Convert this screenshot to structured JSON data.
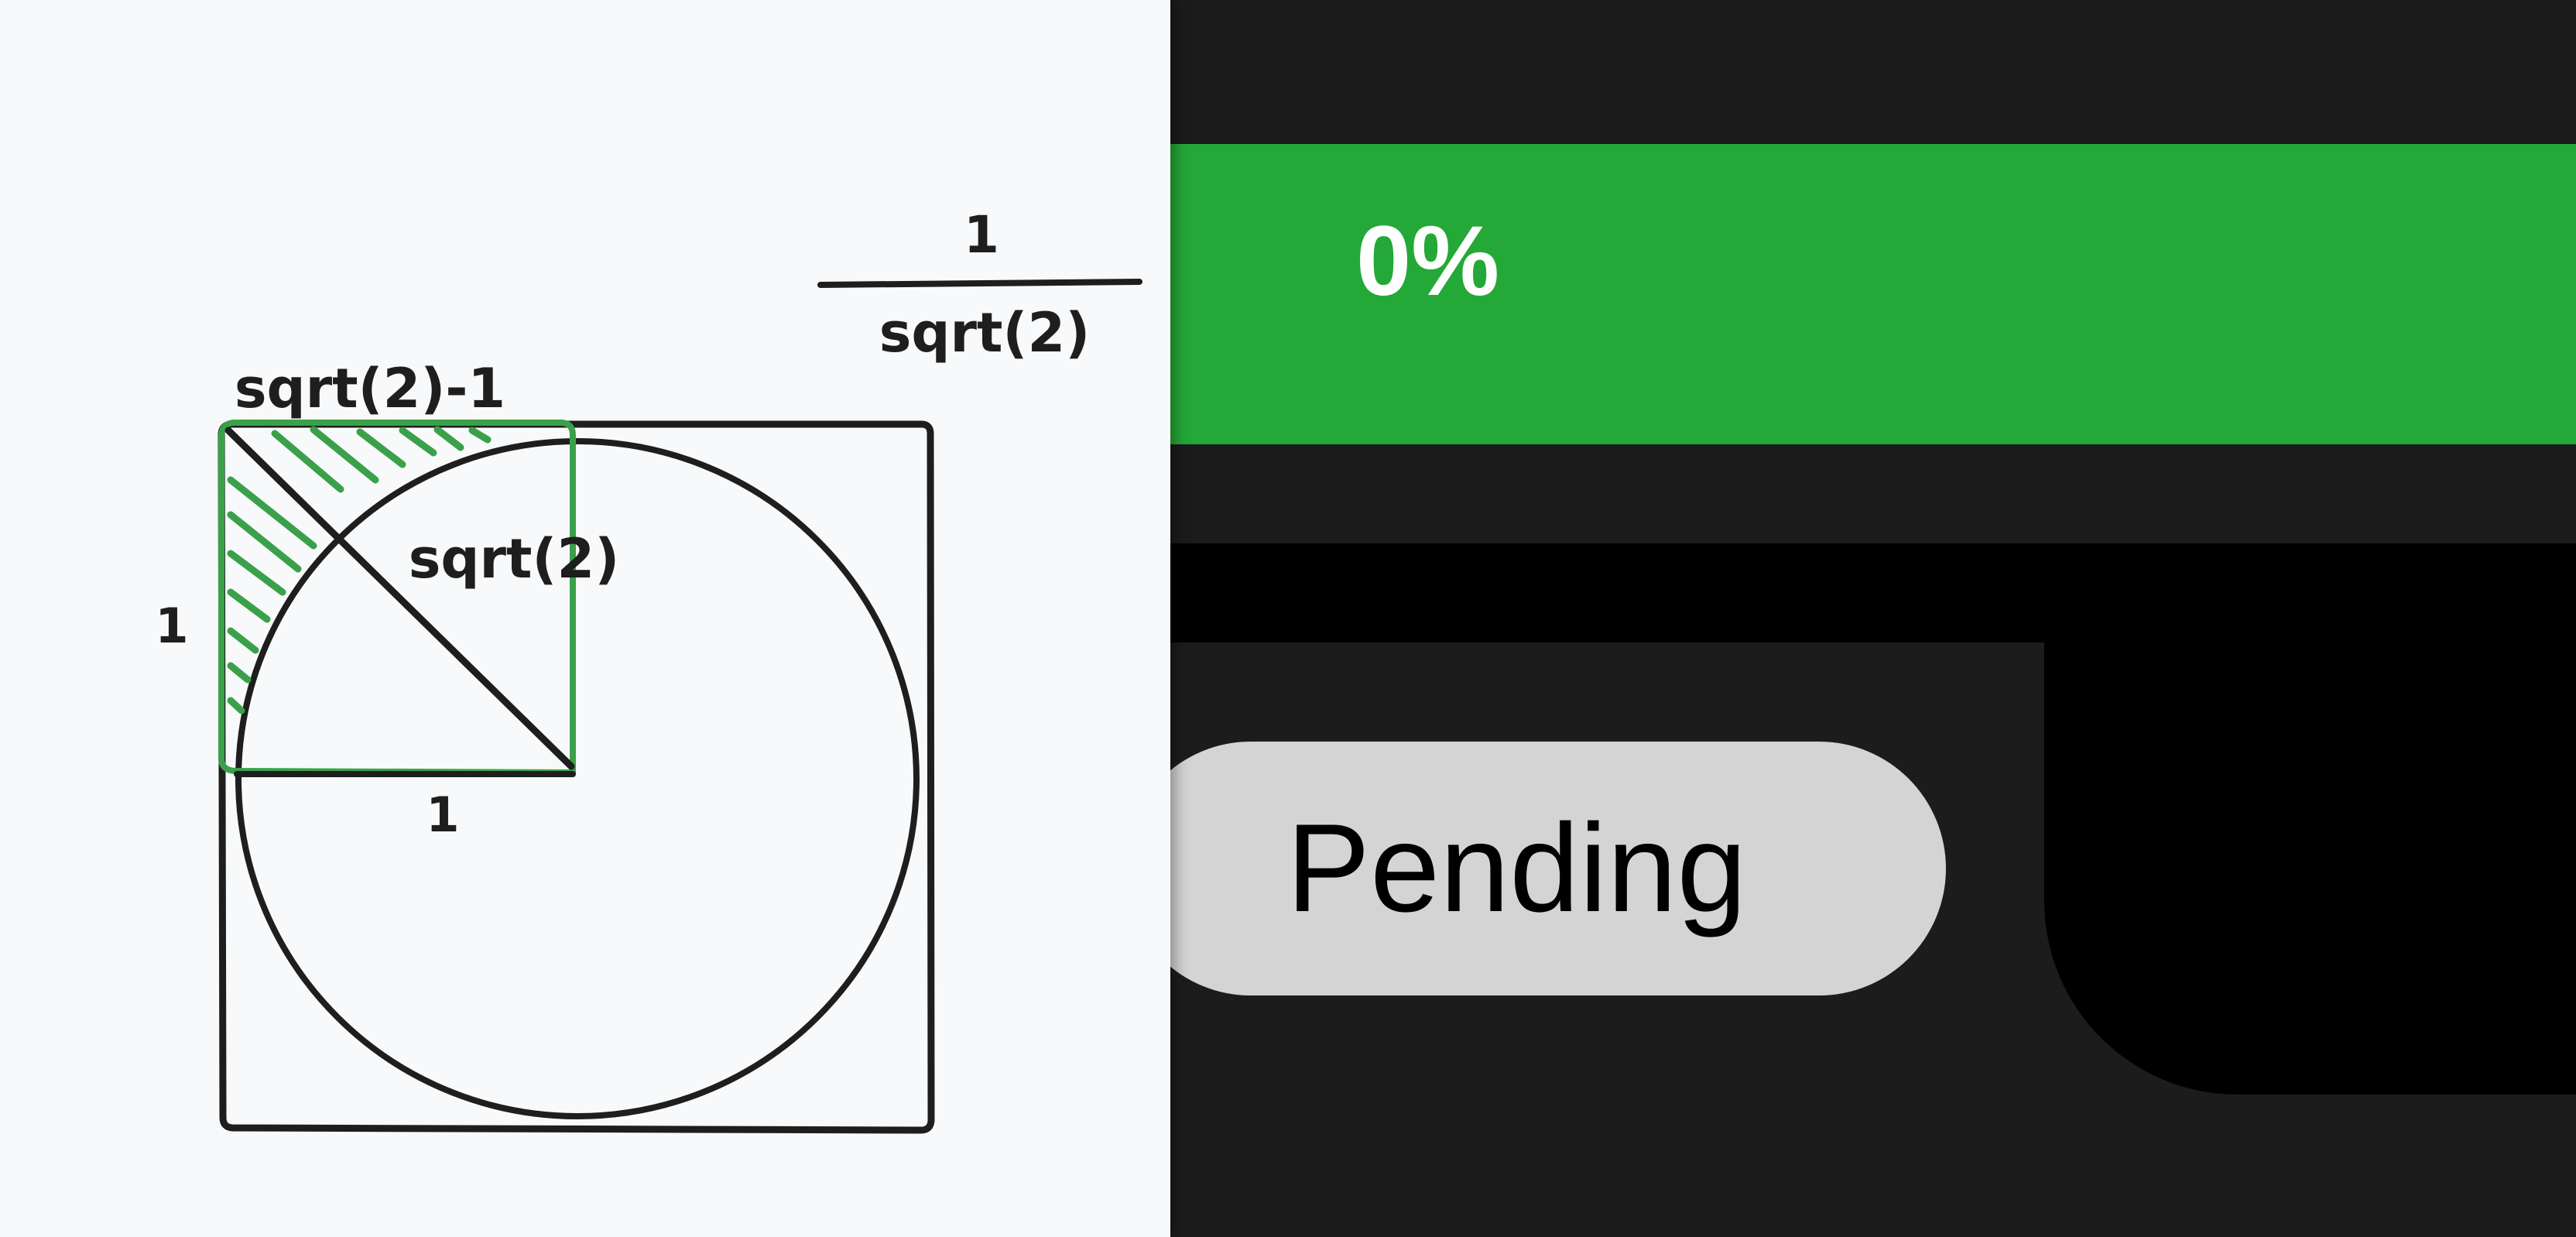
{
  "whiteboard": {
    "labels": {
      "fraction_numerator": "1",
      "fraction_denominator": "sqrt(2)",
      "top_edge": "sqrt(2)-1",
      "diagonal": "sqrt(2)",
      "left_edge": "1",
      "bottom_edge": "1"
    },
    "colors": {
      "ink": "#1e1e1e",
      "highlight": "#3aa14a"
    }
  },
  "progress": {
    "label": "0%",
    "value": 0,
    "color": "#24a838"
  },
  "status": {
    "label": "Pending",
    "pill_color": "#d4d4d4"
  }
}
